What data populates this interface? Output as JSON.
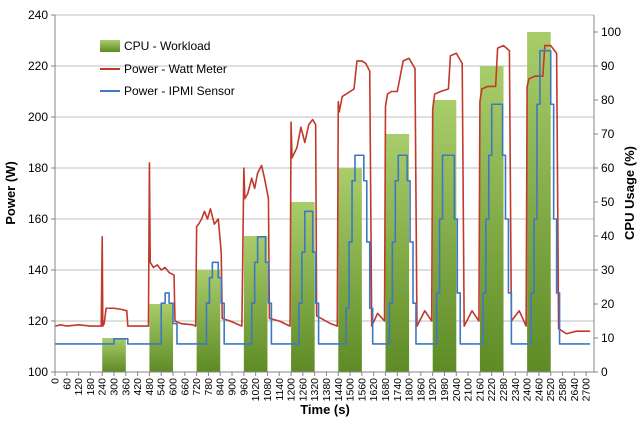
{
  "chart_data": {
    "type": "bar+line",
    "xlabel": "Time (s)",
    "ylabel": "Power (W)",
    "y2label": "CPU Usage (%)",
    "xlim": [
      0,
      2740
    ],
    "ylim": [
      100,
      240
    ],
    "y2lim": [
      0,
      105
    ],
    "x_ticks": [
      "0",
      "60",
      "120",
      "180",
      "240",
      "300",
      "360",
      "420",
      "480",
      "540",
      "600",
      "660",
      "720",
      "780",
      "840",
      "900",
      "960",
      "1020",
      "1080",
      "1140",
      "1200",
      "1260",
      "1320",
      "1380",
      "1440",
      "1500",
      "1560",
      "1620",
      "1680",
      "1740",
      "1800",
      "1860",
      "1920",
      "1980",
      "2040",
      "2100",
      "2160",
      "2220",
      "2280",
      "2340",
      "2400",
      "2460",
      "2520",
      "2580",
      "2640",
      "2700"
    ],
    "y_ticks": [
      "100",
      "120",
      "140",
      "160",
      "180",
      "200",
      "220",
      "240"
    ],
    "y2_ticks": [
      "0",
      "10",
      "20",
      "30",
      "40",
      "50",
      "60",
      "70",
      "80",
      "90",
      "100"
    ],
    "grid": true,
    "legend_position": "top-left",
    "series": [
      {
        "name": "CPU - Workload",
        "kind": "bar",
        "axis": "right",
        "color": "#77a83a",
        "bars": [
          {
            "x_start": 240,
            "x_end": 360,
            "value": 10
          },
          {
            "x_start": 480,
            "x_end": 600,
            "value": 20
          },
          {
            "x_start": 720,
            "x_end": 840,
            "value": 30
          },
          {
            "x_start": 960,
            "x_end": 1080,
            "value": 40
          },
          {
            "x_start": 1200,
            "x_end": 1320,
            "value": 50
          },
          {
            "x_start": 1440,
            "x_end": 1560,
            "value": 60
          },
          {
            "x_start": 1680,
            "x_end": 1800,
            "value": 70
          },
          {
            "x_start": 1920,
            "x_end": 2040,
            "value": 80
          },
          {
            "x_start": 2160,
            "x_end": 2280,
            "value": 90
          },
          {
            "x_start": 2400,
            "x_end": 2520,
            "value": 100
          }
        ]
      },
      {
        "name": "Power - Watt Meter",
        "kind": "line",
        "axis": "left",
        "color": "#c0392b",
        "points": [
          [
            0,
            118
          ],
          [
            30,
            118.5
          ],
          [
            60,
            118
          ],
          [
            120,
            118.5
          ],
          [
            180,
            118
          ],
          [
            235,
            118
          ],
          [
            240,
            153
          ],
          [
            243,
            118
          ],
          [
            250,
            119
          ],
          [
            260,
            125
          ],
          [
            300,
            125
          ],
          [
            340,
            124.5
          ],
          [
            365,
            124
          ],
          [
            370,
            118
          ],
          [
            420,
            118
          ],
          [
            475,
            118
          ],
          [
            480,
            182
          ],
          [
            484,
            143
          ],
          [
            500,
            141
          ],
          [
            520,
            142
          ],
          [
            540,
            140
          ],
          [
            560,
            141
          ],
          [
            580,
            139
          ],
          [
            605,
            138
          ],
          [
            610,
            120
          ],
          [
            640,
            119
          ],
          [
            700,
            118.5
          ],
          [
            715,
            118
          ],
          [
            720,
            157
          ],
          [
            730,
            158
          ],
          [
            745,
            160
          ],
          [
            760,
            163
          ],
          [
            775,
            160
          ],
          [
            790,
            164
          ],
          [
            810,
            158
          ],
          [
            830,
            160
          ],
          [
            845,
            147
          ],
          [
            850,
            121
          ],
          [
            890,
            120
          ],
          [
            950,
            118
          ],
          [
            960,
            180
          ],
          [
            965,
            168
          ],
          [
            980,
            170
          ],
          [
            1000,
            176
          ],
          [
            1015,
            172
          ],
          [
            1030,
            178
          ],
          [
            1050,
            181
          ],
          [
            1065,
            176
          ],
          [
            1085,
            168
          ],
          [
            1090,
            121
          ],
          [
            1140,
            120
          ],
          [
            1195,
            118
          ],
          [
            1200,
            198
          ],
          [
            1205,
            184
          ],
          [
            1230,
            188
          ],
          [
            1250,
            196
          ],
          [
            1270,
            190
          ],
          [
            1290,
            197
          ],
          [
            1310,
            199
          ],
          [
            1325,
            197
          ],
          [
            1330,
            122
          ],
          [
            1400,
            119
          ],
          [
            1435,
            118
          ],
          [
            1440,
            206
          ],
          [
            1445,
            202
          ],
          [
            1460,
            208
          ],
          [
            1480,
            209
          ],
          [
            1500,
            210
          ],
          [
            1520,
            211
          ],
          [
            1535,
            222
          ],
          [
            1560,
            222
          ],
          [
            1580,
            221
          ],
          [
            1600,
            218
          ],
          [
            1610,
            118
          ],
          [
            1640,
            123
          ],
          [
            1675,
            120
          ],
          [
            1680,
            204
          ],
          [
            1690,
            209
          ],
          [
            1710,
            210
          ],
          [
            1740,
            210
          ],
          [
            1770,
            222
          ],
          [
            1800,
            223
          ],
          [
            1830,
            219
          ],
          [
            1840,
            118
          ],
          [
            1880,
            124
          ],
          [
            1915,
            120
          ],
          [
            1920,
            203
          ],
          [
            1930,
            209
          ],
          [
            1960,
            210
          ],
          [
            2000,
            211
          ],
          [
            2010,
            224
          ],
          [
            2040,
            225
          ],
          [
            2070,
            221
          ],
          [
            2080,
            118
          ],
          [
            2120,
            124
          ],
          [
            2155,
            120
          ],
          [
            2160,
            206
          ],
          [
            2170,
            211
          ],
          [
            2200,
            212
          ],
          [
            2240,
            212
          ],
          [
            2250,
            227
          ],
          [
            2280,
            228
          ],
          [
            2310,
            226
          ],
          [
            2320,
            120
          ],
          [
            2360,
            124
          ],
          [
            2395,
            118
          ],
          [
            2400,
            212
          ],
          [
            2410,
            215
          ],
          [
            2440,
            216
          ],
          [
            2480,
            216
          ],
          [
            2490,
            228
          ],
          [
            2520,
            228
          ],
          [
            2550,
            225
          ],
          [
            2560,
            117
          ],
          [
            2600,
            115
          ],
          [
            2650,
            116
          ],
          [
            2700,
            116
          ],
          [
            2720,
            116
          ]
        ]
      },
      {
        "name": "Power - IPMI Sensor",
        "kind": "line",
        "axis": "left",
        "color": "#3d78c3",
        "points": [
          [
            0,
            111
          ],
          [
            300,
            111
          ],
          [
            300,
            113
          ],
          [
            370,
            113
          ],
          [
            370,
            111
          ],
          [
            540,
            111
          ],
          [
            540,
            127
          ],
          [
            560,
            127
          ],
          [
            560,
            131
          ],
          [
            580,
            131
          ],
          [
            580,
            127
          ],
          [
            600,
            127
          ],
          [
            600,
            119
          ],
          [
            620,
            119
          ],
          [
            620,
            111
          ],
          [
            770,
            111
          ],
          [
            770,
            127
          ],
          [
            785,
            127
          ],
          [
            785,
            137
          ],
          [
            800,
            137
          ],
          [
            800,
            143
          ],
          [
            830,
            143
          ],
          [
            830,
            137
          ],
          [
            845,
            137
          ],
          [
            845,
            127
          ],
          [
            860,
            127
          ],
          [
            860,
            111
          ],
          [
            1000,
            111
          ],
          [
            1000,
            127
          ],
          [
            1015,
            127
          ],
          [
            1015,
            143
          ],
          [
            1030,
            143
          ],
          [
            1030,
            153
          ],
          [
            1070,
            153
          ],
          [
            1070,
            143
          ],
          [
            1085,
            143
          ],
          [
            1085,
            127
          ],
          [
            1100,
            127
          ],
          [
            1100,
            111
          ],
          [
            1240,
            111
          ],
          [
            1240,
            127
          ],
          [
            1255,
            127
          ],
          [
            1255,
            147
          ],
          [
            1270,
            147
          ],
          [
            1270,
            163
          ],
          [
            1310,
            163
          ],
          [
            1310,
            147
          ],
          [
            1325,
            147
          ],
          [
            1325,
            127
          ],
          [
            1340,
            127
          ],
          [
            1340,
            111
          ],
          [
            1480,
            111
          ],
          [
            1480,
            125
          ],
          [
            1495,
            125
          ],
          [
            1495,
            151
          ],
          [
            1510,
            151
          ],
          [
            1510,
            175
          ],
          [
            1525,
            175
          ],
          [
            1525,
            185
          ],
          [
            1570,
            185
          ],
          [
            1570,
            175
          ],
          [
            1585,
            175
          ],
          [
            1585,
            151
          ],
          [
            1600,
            151
          ],
          [
            1600,
            125
          ],
          [
            1615,
            125
          ],
          [
            1615,
            111
          ],
          [
            1700,
            111
          ],
          [
            1700,
            127
          ],
          [
            1715,
            127
          ],
          [
            1715,
            151
          ],
          [
            1730,
            151
          ],
          [
            1730,
            175
          ],
          [
            1745,
            175
          ],
          [
            1745,
            185
          ],
          [
            1790,
            185
          ],
          [
            1790,
            175
          ],
          [
            1805,
            175
          ],
          [
            1805,
            151
          ],
          [
            1820,
            151
          ],
          [
            1820,
            127
          ],
          [
            1835,
            127
          ],
          [
            1835,
            111
          ],
          [
            1940,
            111
          ],
          [
            1940,
            131
          ],
          [
            1955,
            131
          ],
          [
            1955,
            160
          ],
          [
            1970,
            160
          ],
          [
            1970,
            185
          ],
          [
            2030,
            185
          ],
          [
            2030,
            160
          ],
          [
            2045,
            160
          ],
          [
            2045,
            131
          ],
          [
            2060,
            131
          ],
          [
            2060,
            111
          ],
          [
            2175,
            111
          ],
          [
            2175,
            131
          ],
          [
            2190,
            131
          ],
          [
            2190,
            160
          ],
          [
            2205,
            160
          ],
          [
            2205,
            185
          ],
          [
            2220,
            185
          ],
          [
            2220,
            205
          ],
          [
            2275,
            205
          ],
          [
            2275,
            185
          ],
          [
            2290,
            185
          ],
          [
            2290,
            160
          ],
          [
            2305,
            160
          ],
          [
            2305,
            131
          ],
          [
            2320,
            131
          ],
          [
            2320,
            111
          ],
          [
            2420,
            111
          ],
          [
            2420,
            131
          ],
          [
            2435,
            131
          ],
          [
            2435,
            160
          ],
          [
            2450,
            160
          ],
          [
            2450,
            205
          ],
          [
            2465,
            205
          ],
          [
            2465,
            226
          ],
          [
            2520,
            226
          ],
          [
            2520,
            205
          ],
          [
            2535,
            205
          ],
          [
            2535,
            160
          ],
          [
            2550,
            160
          ],
          [
            2550,
            131
          ],
          [
            2565,
            131
          ],
          [
            2565,
            111
          ],
          [
            2720,
            111
          ]
        ]
      }
    ]
  }
}
